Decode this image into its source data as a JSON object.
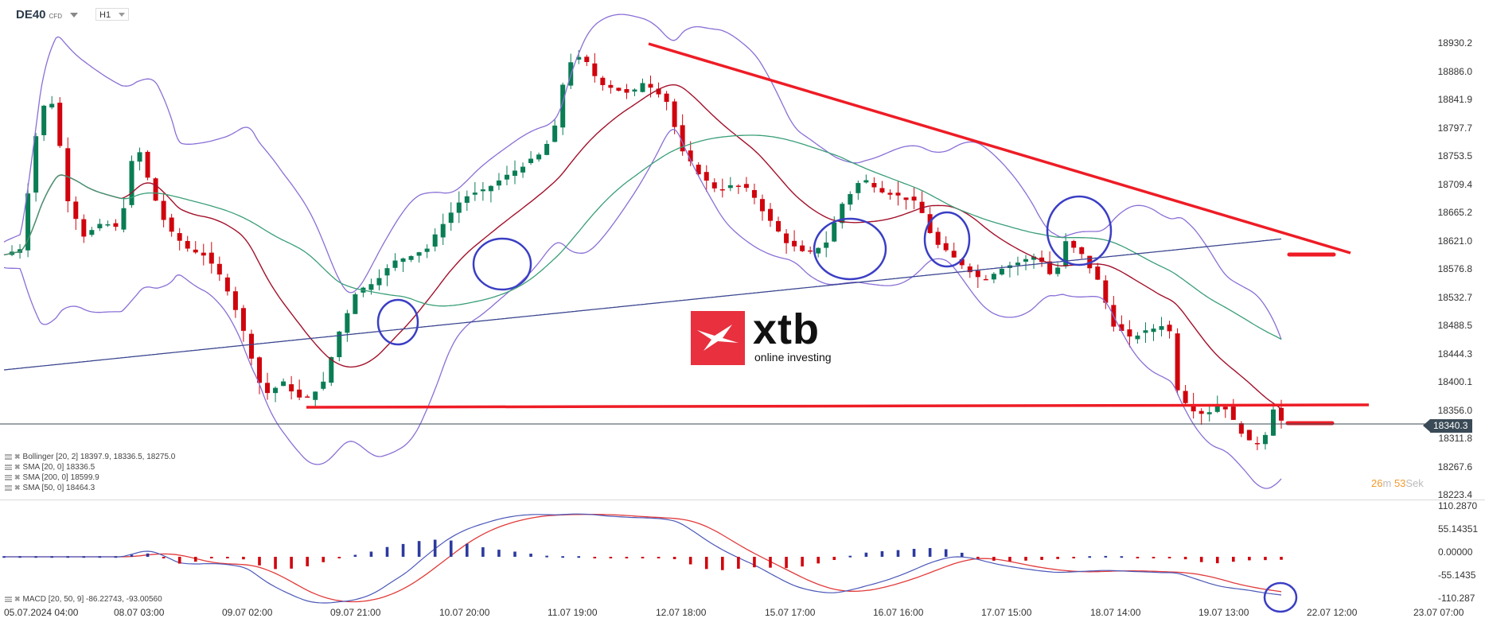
{
  "header": {
    "symbol": "DE40",
    "symbol_type": "CFD",
    "timeframe": "H1"
  },
  "price_axis": {
    "labels": [
      "18930.2",
      "18886.0",
      "18841.9",
      "18797.7",
      "18753.5",
      "18709.4",
      "18665.2",
      "18621.0",
      "18576.8",
      "18532.7",
      "18488.5",
      "18444.3",
      "18400.1",
      "18356.0",
      "18311.8",
      "18267.6",
      "18223.4"
    ],
    "current_price": "18340.3"
  },
  "macd_axis": {
    "labels": [
      "110.2870",
      "55.14351",
      "0.00000",
      "-55.1435",
      "-110.287"
    ]
  },
  "time_axis": {
    "labels": [
      "05.07.2024  04:00",
      "08.07  03:00",
      "09.07  02:00",
      "09.07  21:00",
      "10.07  20:00",
      "11.07  19:00",
      "12.07  18:00",
      "15.07  17:00",
      "16.07  16:00",
      "17.07  15:00",
      "18.07  14:00",
      "19.07  13:00",
      "22.07  12:00",
      "23.07  07:00"
    ]
  },
  "legend": {
    "bollinger": "Bollinger  [20, 2] 18397.9,  18336.5,  18275.0",
    "sma20": "SMA [20, 0] 18336.5",
    "sma200": "SMA [200, 0] 18599.9",
    "sma50": "SMA [50, 0] 18464.3",
    "macd": "MACD [20, 50, 9] -86.22743,  -93.00560"
  },
  "countdown": {
    "minutes": "26",
    "minutes_unit": "m",
    "seconds": "53",
    "seconds_unit": "Sek"
  },
  "logo": {
    "brand": "xtb",
    "tagline": "online investing"
  },
  "colors": {
    "bull": "#0a7d55",
    "bear": "#d0040d",
    "bollinger": "#8a6fd6",
    "sma20": "#a3102a",
    "sma50": "#3a9e78",
    "sma200": "#3b4690",
    "trendline": "#ee1c25",
    "annotation_circle": "#3a3ec4",
    "macd_line": "#4b57b8",
    "signal_line": "#e23a3a"
  },
  "chart_data": {
    "type": "candlestick",
    "title": "DE40 CFD H1",
    "xlabel": "",
    "ylabel": "",
    "ylim": [
      18223.4,
      18930.2
    ],
    "time_ticks": [
      "05.07.2024 04:00",
      "08.07 03:00",
      "09.07 02:00",
      "09.07 21:00",
      "10.07 20:00",
      "11.07 19:00",
      "12.07 18:00",
      "15.07 17:00",
      "16.07 16:00",
      "17.07 15:00",
      "18.07 14:00",
      "19.07 13:00",
      "22.07 12:00",
      "23.07 07:00"
    ],
    "current_price": 18340.3,
    "indicators": {
      "bollinger": {
        "period": 20,
        "dev": 2,
        "upper": 18397.9,
        "middle": 18336.5,
        "lower": 18275.0
      },
      "sma20": 18336.5,
      "sma200": 18599.9,
      "sma50": 18464.3,
      "macd": {
        "params": [
          20,
          50,
          9
        ],
        "macd": -86.22743,
        "signal": -93.0056,
        "ylim": [
          -110.287,
          110.287
        ]
      }
    },
    "annotations": {
      "descending_trendline": {
        "from": [
          "12.07 ~11:00",
          18915
        ],
        "to": [
          "~22.07",
          18610
        ]
      },
      "horizontal_support": 18360,
      "target_marks": [
        18603,
        18340
      ],
      "circles": [
        "09.07 ~23:00",
        "10.07 ~22:00",
        "15.07 ~22:00",
        "16.07 ~20:00",
        "18.07 ~11:00",
        "MACD 19.07 ~15:00"
      ]
    },
    "price_path_approx": [
      {
        "t": "05.07 04:00",
        "close": 18600
      },
      {
        "t": "05.07 10:00",
        "close": 18830
      },
      {
        "t": "05.07 15:00",
        "close": 18620
      },
      {
        "t": "08.07 03:00",
        "close": 18640
      },
      {
        "t": "08.07 14:00",
        "close": 18780
      },
      {
        "t": "08.07 22:00",
        "close": 18610
      },
      {
        "t": "09.07 02:00",
        "close": 18600
      },
      {
        "t": "09.07 10:00",
        "close": 18500
      },
      {
        "t": "09.07 14:00",
        "close": 18370
      },
      {
        "t": "09.07 21:00",
        "close": 18400
      },
      {
        "t": "10.07 03:00",
        "close": 18520
      },
      {
        "t": "10.07 20:00",
        "close": 18600
      },
      {
        "t": "11.07 05:00",
        "close": 18680
      },
      {
        "t": "11.07 19:00",
        "close": 18760
      },
      {
        "t": "12.07 03:00",
        "close": 18900
      },
      {
        "t": "12.07 18:00",
        "close": 18850
      },
      {
        "t": "15.07 05:00",
        "close": 18760
      },
      {
        "t": "15.07 17:00",
        "close": 18700
      },
      {
        "t": "16.07 05:00",
        "close": 18600
      },
      {
        "t": "16.07 16:00",
        "close": 18710
      },
      {
        "t": "17.07 05:00",
        "close": 18620
      },
      {
        "t": "17.07 15:00",
        "close": 18570
      },
      {
        "t": "18.07 05:00",
        "close": 18600
      },
      {
        "t": "18.07 14:00",
        "close": 18470
      },
      {
        "t": "19.07 02:00",
        "close": 18480
      },
      {
        "t": "19.07 06:00",
        "close": 18360
      },
      {
        "t": "19.07 13:00",
        "close": 18300
      },
      {
        "t": "19.07 19:00",
        "close": 18340.3
      }
    ]
  }
}
